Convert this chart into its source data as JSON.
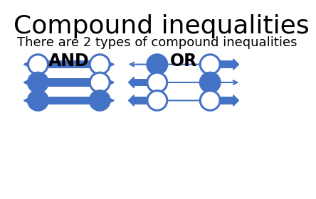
{
  "title": "Compound inequalities",
  "subtitle": "There are 2 types of compound inequalities",
  "blue": "#4472C4",
  "white": "#FFFFFF",
  "bg": "#FFFFFF",
  "and_label": "AND",
  "or_label": "OR",
  "and_rows": [
    {
      "left_filled": false,
      "right_filled": false
    },
    {
      "left_filled": true,
      "right_filled": false
    },
    {
      "left_filled": true,
      "right_filled": true
    }
  ],
  "or_rows": [
    {
      "left_filled": true,
      "right_filled": false,
      "left_block": false,
      "right_block": true
    },
    {
      "left_filled": false,
      "right_filled": true,
      "left_block": true,
      "right_block": false
    },
    {
      "left_filled": false,
      "right_filled": false,
      "left_block": true,
      "right_block": true
    }
  ],
  "title_fontsize": 26,
  "subtitle_fontsize": 13,
  "label_fontsize": 17
}
